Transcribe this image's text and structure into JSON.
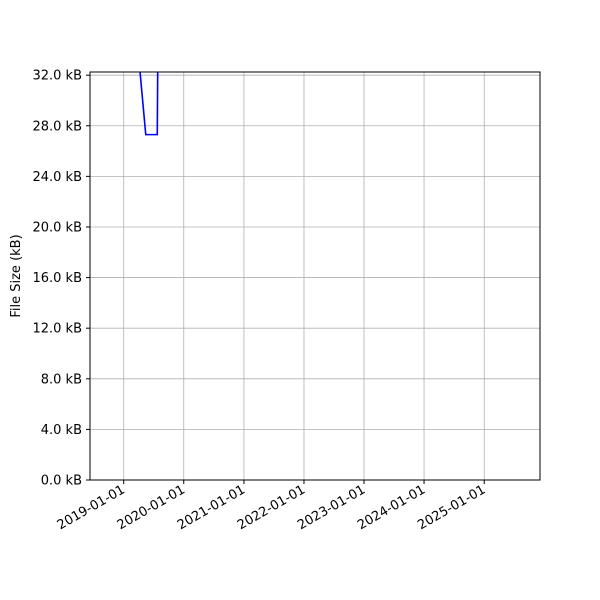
{
  "chart_data": {
    "type": "line",
    "title": "",
    "xlabel": "",
    "ylabel": "File Size (kB)",
    "xlim": [
      "2018-06-10",
      "2025-12-06"
    ],
    "ylim": [
      0,
      32.25
    ],
    "grid": true,
    "x_ticks": [
      "2019-01-01",
      "2020-01-01",
      "2021-01-01",
      "2022-01-01",
      "2023-01-01",
      "2024-01-01",
      "2025-01-01"
    ],
    "y_ticks": [
      0,
      4,
      8,
      12,
      16,
      20,
      24,
      28,
      32
    ],
    "y_tick_labels": [
      "0.0 kB",
      "4.0 kB",
      "8.0 kB",
      "12.0 kB",
      "16.0 kB",
      "20.0 kB",
      "24.0 kB",
      "28.0 kB",
      "32.0 kB"
    ],
    "series": [
      {
        "color": "#0000ff",
        "x": [
          "2019-04-05",
          "2019-05-15",
          "2019-07-24",
          "2019-07-27"
        ],
        "values": [
          33.0,
          27.3,
          27.3,
          33.0
        ]
      }
    ]
  }
}
